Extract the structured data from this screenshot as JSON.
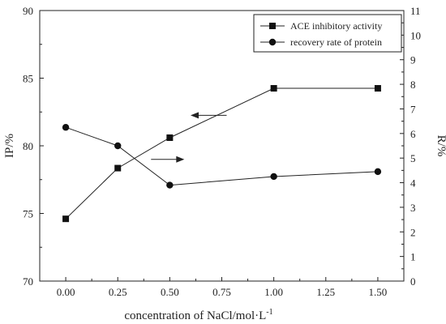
{
  "chart_data": {
    "type": "line",
    "x": [
      0.0,
      0.25,
      0.5,
      1.0,
      1.5
    ],
    "xlabel": "concentration of NaCl/mol·L",
    "xlabel_superscript": "-1",
    "ylabel_left": "IP/%",
    "ylabel_right": "R/%",
    "xlim": [
      -0.125,
      1.625
    ],
    "ylim_left": [
      70,
      90
    ],
    "ylim_right": [
      0,
      11
    ],
    "x_ticks": [
      "0.00",
      "0.25",
      "0.50",
      "0.75",
      "1.00",
      "1.25",
      "1.50"
    ],
    "y_left_ticks": [
      "70",
      "75",
      "80",
      "85",
      "90"
    ],
    "y_right_ticks": [
      "0",
      "1",
      "2",
      "3",
      "4",
      "5",
      "6",
      "7",
      "8",
      "9",
      "10",
      "11"
    ],
    "grid": false,
    "legend_position": "top-right",
    "series": [
      {
        "name": "ACE inhibitory activity",
        "axis": "left",
        "marker": "square",
        "values": [
          74.6,
          78.35,
          80.6,
          84.25,
          84.25
        ]
      },
      {
        "name": "recovery rate of protein",
        "axis": "right",
        "marker": "circle",
        "values": [
          6.25,
          5.5,
          3.9,
          4.25,
          4.45
        ]
      }
    ],
    "annotations": [
      {
        "kind": "arrow",
        "direction": "left",
        "points_to_axis": "left"
      },
      {
        "kind": "arrow",
        "direction": "right",
        "points_to_axis": "right"
      }
    ]
  }
}
